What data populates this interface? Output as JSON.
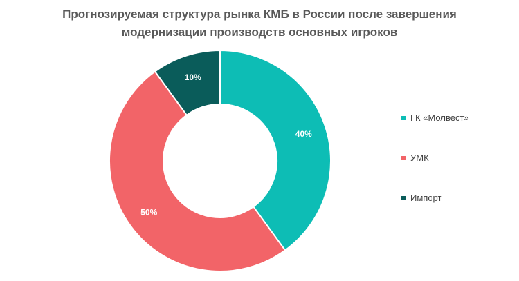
{
  "title": {
    "line1": "Прогнозируемая структура рынка КМБ в России после завершения",
    "line2": "модернизации производств основных игроков"
  },
  "chart_data": {
    "type": "pie",
    "donut": true,
    "title": "Прогнозируемая структура рынка КМБ в России после завершения модернизации производств основных игроков",
    "categories": [
      "ГК «Молвест»",
      "УМК",
      "Импорт"
    ],
    "values": [
      40,
      50,
      10
    ],
    "labels": [
      "40%",
      "50%",
      "10%"
    ],
    "colors": [
      "#0DBDB5",
      "#F26468",
      "#0A5C5A"
    ],
    "legend_position": "right"
  }
}
